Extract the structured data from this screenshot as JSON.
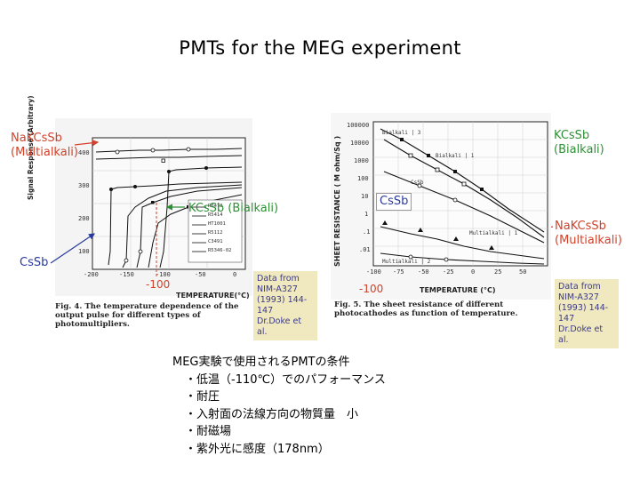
{
  "title": "PMTs for the MEG experiment",
  "left_figure": {
    "ylabel": "Signal Response (Arbitrary)",
    "xlabel": "TEMPERATURE(°C)",
    "x_ticks": [
      "-200",
      "-150",
      "-100",
      "-50",
      "0"
    ],
    "y_ticks": [
      "400",
      "300",
      "200",
      "100"
    ],
    "caption": "Fig. 4. The temperature dependence of the output pulse for different types of photomultipliers.",
    "legend": [
      "R3478",
      "R5414",
      "HT1001",
      "R5112",
      "C3491",
      "R5346-02"
    ]
  },
  "right_figure": {
    "ylabel": "SHEET RESISTANCE ( M ohm/Sq )",
    "xlabel": "TEMPERATURE (°C)",
    "x_ticks": [
      "-100",
      "-75",
      "-50",
      "-25",
      "0",
      "25",
      "50"
    ],
    "y_ticks": [
      "100000",
      "10000",
      "1000",
      "100",
      "10",
      "1",
      ".1",
      ".01"
    ],
    "curve_labels": [
      "Bialkali | 3",
      "Bialkali | 1",
      "CsSb",
      "Multialkali | 1",
      "Multialkali | 2"
    ],
    "caption": "Fig. 5. The sheet resistance of different photocathodes as function of temperature."
  },
  "annotations": {
    "nakcssb_left_line1": "NaKCsSb",
    "nakcssb_left_line2": "(Multialkali)",
    "kcssb_left": "KCsSb (Bialkali)",
    "cssb_left": "CsSb",
    "m100_left": "-100",
    "kcssb_right_line1": "KCsSb",
    "kcssb_right_line2": "(Bialkali)",
    "cssb_right": "CsSb",
    "nakcssb_right_line1": "NaKCsSb",
    "nakcssb_right_line2": "(Multialkali)",
    "m100_right": "-100"
  },
  "notes": {
    "left": [
      "Data from",
      "NIM-A327",
      "(1993) 144-147",
      "Dr.Doke et al."
    ],
    "right": [
      "Data from",
      "NIM-A327",
      "(1993) 144-147",
      "Dr.Doke et al."
    ]
  },
  "conditions": {
    "heading": "MEG実験で使用されるPMTの条件",
    "items": [
      "・低温（-110℃）でのパフォーマンス",
      "・耐圧",
      "・入射面の法線方向の物質量　小",
      "・耐磁場",
      "・紫外光に感度（178nm）"
    ]
  },
  "colors": {
    "red": "#d2412a",
    "green": "#2f8f35",
    "blue": "#2a3a9a",
    "note_bg": "#f0e9c0"
  }
}
